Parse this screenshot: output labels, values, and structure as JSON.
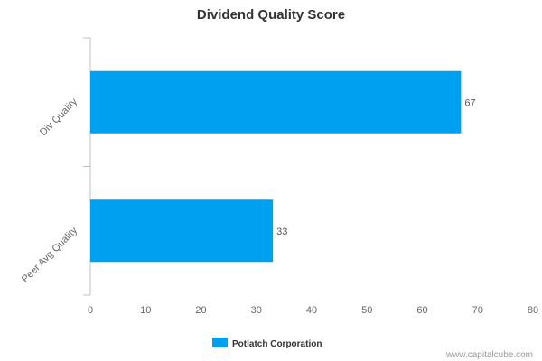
{
  "chart_data": {
    "type": "bar",
    "orientation": "horizontal",
    "title": "Dividend Quality Score",
    "categories": [
      "Div Quality",
      "Peer Avg Quality"
    ],
    "series": [
      {
        "name": "Potlatch Corporation",
        "values": [
          67,
          33
        ],
        "color": "#00a0f0"
      }
    ],
    "xlim": [
      0,
      80
    ],
    "x_ticks": [
      "0",
      "10",
      "20",
      "30",
      "40",
      "50",
      "60",
      "70",
      "80"
    ],
    "grid": false,
    "legend_position": "bottom"
  },
  "credit": "www.capitalcube.com"
}
